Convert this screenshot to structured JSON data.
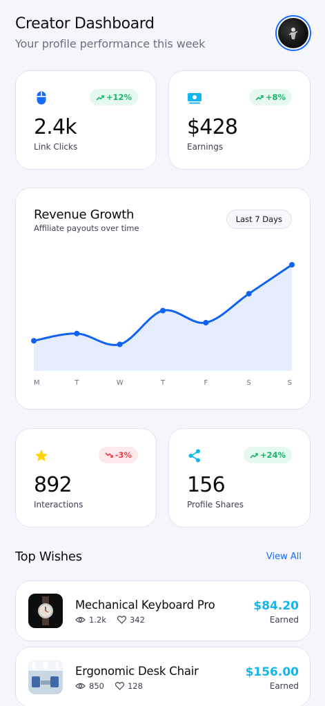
{
  "header": {
    "title": "Creator Dashboard",
    "subtitle": "Your profile performance this week"
  },
  "stats": [
    {
      "icon": "mouse-icon",
      "trend": "+12%",
      "trend_dir": "up",
      "value": "2.4k",
      "label": "Link Clicks"
    },
    {
      "icon": "money-icon",
      "trend": "+8%",
      "trend_dir": "up",
      "value": "$428",
      "label": "Earnings"
    },
    {
      "icon": "star-icon",
      "trend": "-3%",
      "trend_dir": "down",
      "value": "892",
      "label": "Interactions"
    },
    {
      "icon": "share-icon",
      "trend": "+24%",
      "trend_dir": "up",
      "value": "156",
      "label": "Profile Shares"
    }
  ],
  "revenue": {
    "title": "Revenue Growth",
    "subtitle": "Affiliate payouts over time",
    "range_label": "Last 7 Days"
  },
  "chart_data": {
    "type": "area",
    "x": [
      "M",
      "T",
      "W",
      "T",
      "F",
      "S",
      "S"
    ],
    "values": [
      25,
      31,
      22,
      50,
      40,
      64,
      88
    ],
    "ylim": [
      0,
      100
    ],
    "grid": false,
    "line_color": "#0f62f2",
    "fill_color": "#e5edfd"
  },
  "wishes": {
    "title": "Top Wishes",
    "view_all": "View All",
    "items": [
      {
        "name": "Mechanical Keyboard Pro",
        "views": "1.2k",
        "likes": "342",
        "price": "$84.20",
        "earned_label": "Earned",
        "thumb": "watch-image"
      },
      {
        "name": "Ergonomic Desk Chair",
        "views": "850",
        "likes": "128",
        "price": "$156.00",
        "earned_label": "Earned",
        "thumb": "office-image"
      }
    ]
  },
  "colors": {
    "accent": "#1769ff",
    "trend_up": "#18b56a",
    "trend_down": "#ef3b4a",
    "price": "#12b6ef",
    "star": "#ffd400"
  }
}
